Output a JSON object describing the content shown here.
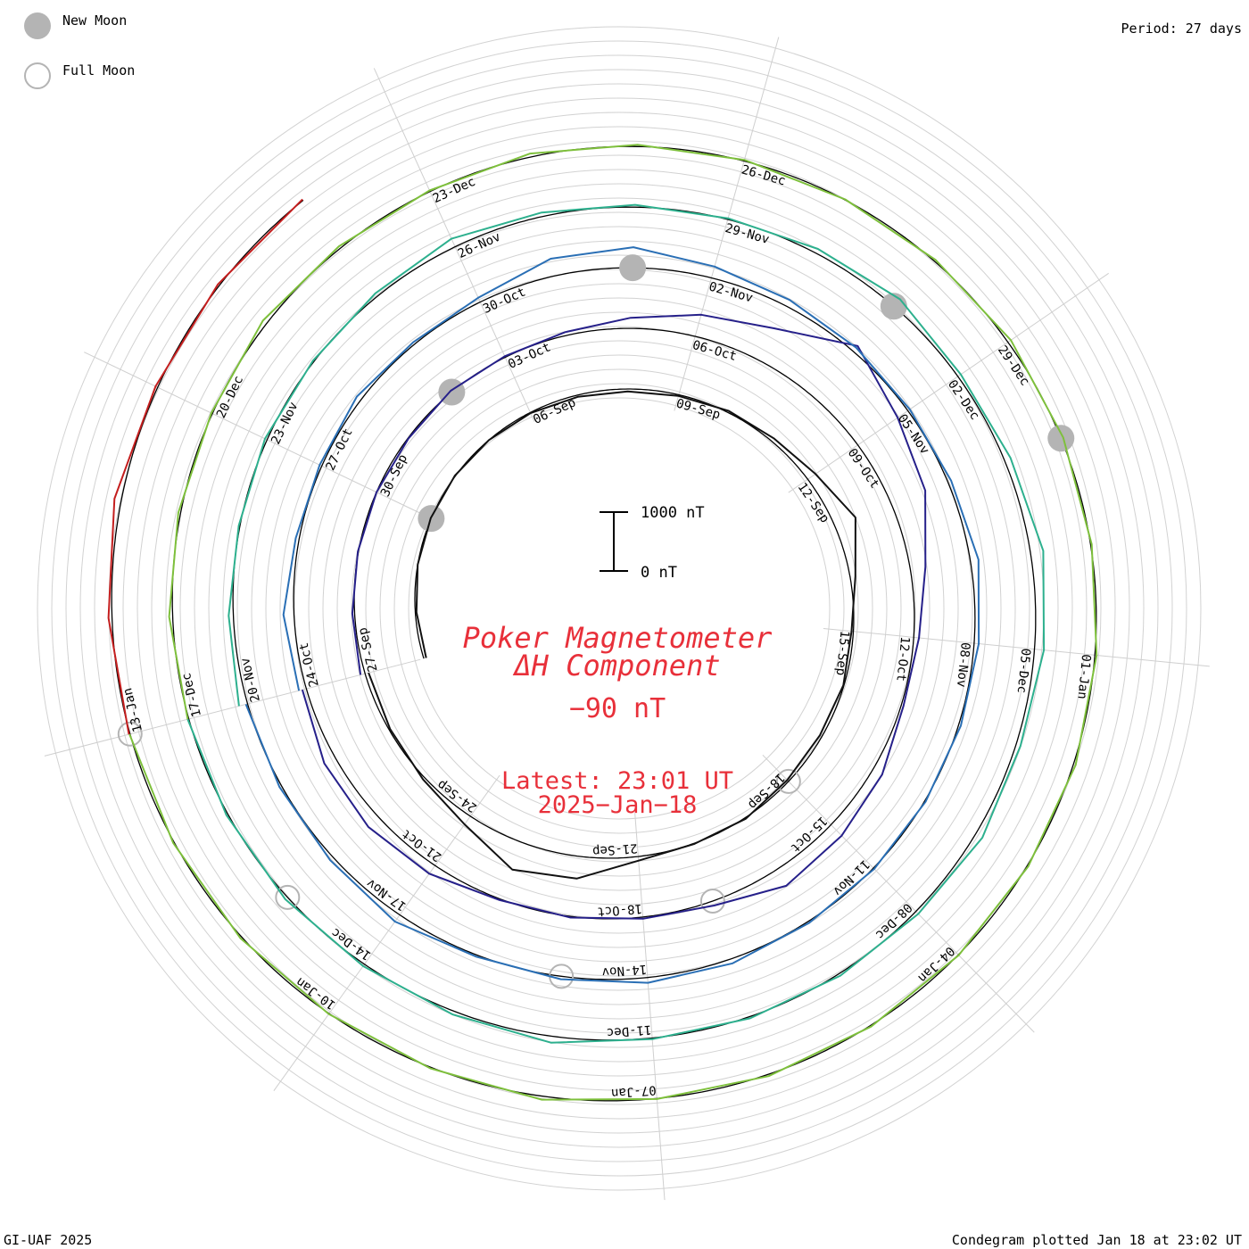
{
  "header": {
    "period_label": "Period: 27 days"
  },
  "legend": {
    "new_moon_label": "New Moon",
    "full_moon_label": "Full Moon",
    "new_moon_icon": "filled-grey-circle",
    "full_moon_icon": "hollow-grey-circle",
    "moon_color": "#b4b4b4"
  },
  "footer": {
    "credit": "GI-UAF 2025",
    "plotted": "Condegram plotted Jan 18 at 23:02 UT"
  },
  "center": {
    "title_line1": "Poker Magnetometer",
    "title_line2": "ΔH Component",
    "current_value": "−90 nT",
    "latest_time": "Latest: 23:01 UT",
    "latest_date": "2025−Jan−18",
    "scale_top_label": "1000 nT",
    "scale_bottom_label": "0 nT",
    "title_color": "#e8303a"
  },
  "chart_data": {
    "type": "line",
    "subtype": "condegram-spiral",
    "period_days": 27,
    "y_unit": "nT",
    "scale_bar_nT": 1000,
    "baseline_color": "#000000",
    "grid": true,
    "rotations": [
      {
        "start": "2024-08-31",
        "end": "2024-09-27",
        "color": "#111111",
        "date_labels": [
          "06-Sep",
          "09-Sep",
          "12-Sep",
          "15-Sep",
          "18-Sep",
          "21-Sep",
          "24-Sep",
          "27-Sep"
        ],
        "y": [
          -40,
          -20,
          0,
          10,
          10,
          0,
          -10,
          -30,
          -40,
          -20,
          30,
          60,
          160,
          380,
          90,
          -30,
          -10,
          -40,
          -30,
          20,
          10,
          70,
          380,
          490,
          170,
          40,
          -20,
          -60
        ]
      },
      {
        "start": "2024-09-27",
        "end": "2024-10-24",
        "color": "#26208a",
        "date_labels": [
          "30-Sep",
          "03-Oct",
          "06-Oct",
          "09-Oct",
          "12-Oct",
          "15-Oct",
          "18-Oct",
          "21-Oct",
          "24-Oct"
        ],
        "y": [
          80,
          40,
          10,
          0,
          -10,
          30,
          20,
          60,
          180,
          380,
          600,
          1150,
          820,
          620,
          260,
          90,
          40,
          180,
          260,
          320,
          80,
          30,
          20,
          20,
          170,
          240,
          210,
          70
        ]
      },
      {
        "start": "2024-10-24",
        "end": "2024-11-20",
        "color": "#2a6fb5",
        "date_labels": [
          "27-Oct",
          "30-Oct",
          "02-Nov",
          "05-Nov",
          "08-Nov",
          "11-Nov",
          "14-Nov",
          "17-Nov",
          "20-Nov"
        ],
        "y": [
          130,
          180,
          60,
          40,
          90,
          40,
          80,
          300,
          350,
          200,
          120,
          80,
          40,
          60,
          140,
          80,
          40,
          20,
          20,
          30,
          80,
          90,
          50,
          30,
          140,
          70,
          40,
          30
        ]
      },
      {
        "start": "2024-11-20",
        "end": "2024-12-17",
        "color": "#2db08e",
        "date_labels": [
          "23-Nov",
          "26-Nov",
          "29-Nov",
          "02-Dec",
          "05-Dec",
          "08-Dec",
          "11-Dec",
          "14-Dec",
          "17-Dec"
        ],
        "y": [
          150,
          80,
          20,
          40,
          20,
          60,
          150,
          70,
          40,
          20,
          80,
          160,
          60,
          110,
          220,
          160,
          80,
          130,
          60,
          40,
          30,
          20,
          110,
          60,
          40,
          50,
          30,
          20
        ]
      },
      {
        "start": "2024-12-17",
        "end": "2025-01-13",
        "color": "#7ec03c",
        "date_labels": [
          "20-Dec",
          "23-Dec",
          "26-Dec",
          "29-Dec",
          "01-Jan",
          "04-Jan",
          "07-Jan",
          "10-Jan",
          "13-Jan"
        ],
        "y": [
          20,
          60,
          40,
          20,
          80,
          40,
          20,
          60,
          30,
          20,
          10,
          30,
          60,
          40,
          20,
          30,
          40,
          20,
          10,
          20,
          30,
          10,
          60,
          20,
          10,
          30,
          20,
          10
        ]
      },
      {
        "start": "2025-01-13",
        "end": "2025-01-18",
        "color": "#c41e1e",
        "date_labels": [],
        "y": [
          20,
          60,
          120,
          40,
          30,
          20
        ]
      }
    ],
    "new_moons": [
      "2024-09-03",
      "2024-10-02",
      "2024-11-01",
      "2024-12-01",
      "2024-12-30"
    ],
    "full_moons": [
      "2024-09-18",
      "2024-10-17",
      "2024-11-15",
      "2024-12-15",
      "2025-01-13"
    ]
  }
}
